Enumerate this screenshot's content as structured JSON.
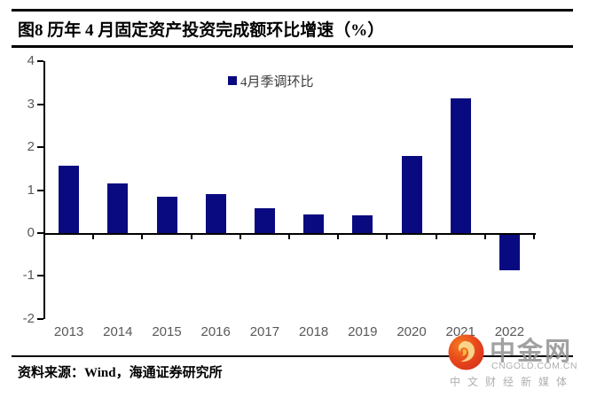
{
  "header": {
    "title": "图8  历年 4 月固定资产投资完成额环比增速（%）"
  },
  "chart_data": {
    "type": "bar",
    "title": "历年4月固定资产投资完成额环比增速（%）",
    "legend": [
      "4月季调环比"
    ],
    "legend_position": "top-center",
    "categories": [
      "2013",
      "2014",
      "2015",
      "2016",
      "2017",
      "2018",
      "2019",
      "2020",
      "2021",
      "2022"
    ],
    "values": [
      1.56,
      1.15,
      0.84,
      0.9,
      0.57,
      0.44,
      0.41,
      1.8,
      3.15,
      -0.82
    ],
    "ylim": [
      -2,
      4
    ],
    "yticks": [
      4,
      3,
      2,
      1,
      0,
      -1,
      -2
    ],
    "bar_color": "#0a0a80",
    "axis_color": "#000000",
    "tick_label_color": "#595959",
    "grid": false
  },
  "footer": {
    "source": "资料来源：Wind，海通证券研究所"
  },
  "watermark": {
    "name": "中金网",
    "domain": "CNGOLD.COM.CN",
    "tagline": "中文财经新媒体"
  }
}
